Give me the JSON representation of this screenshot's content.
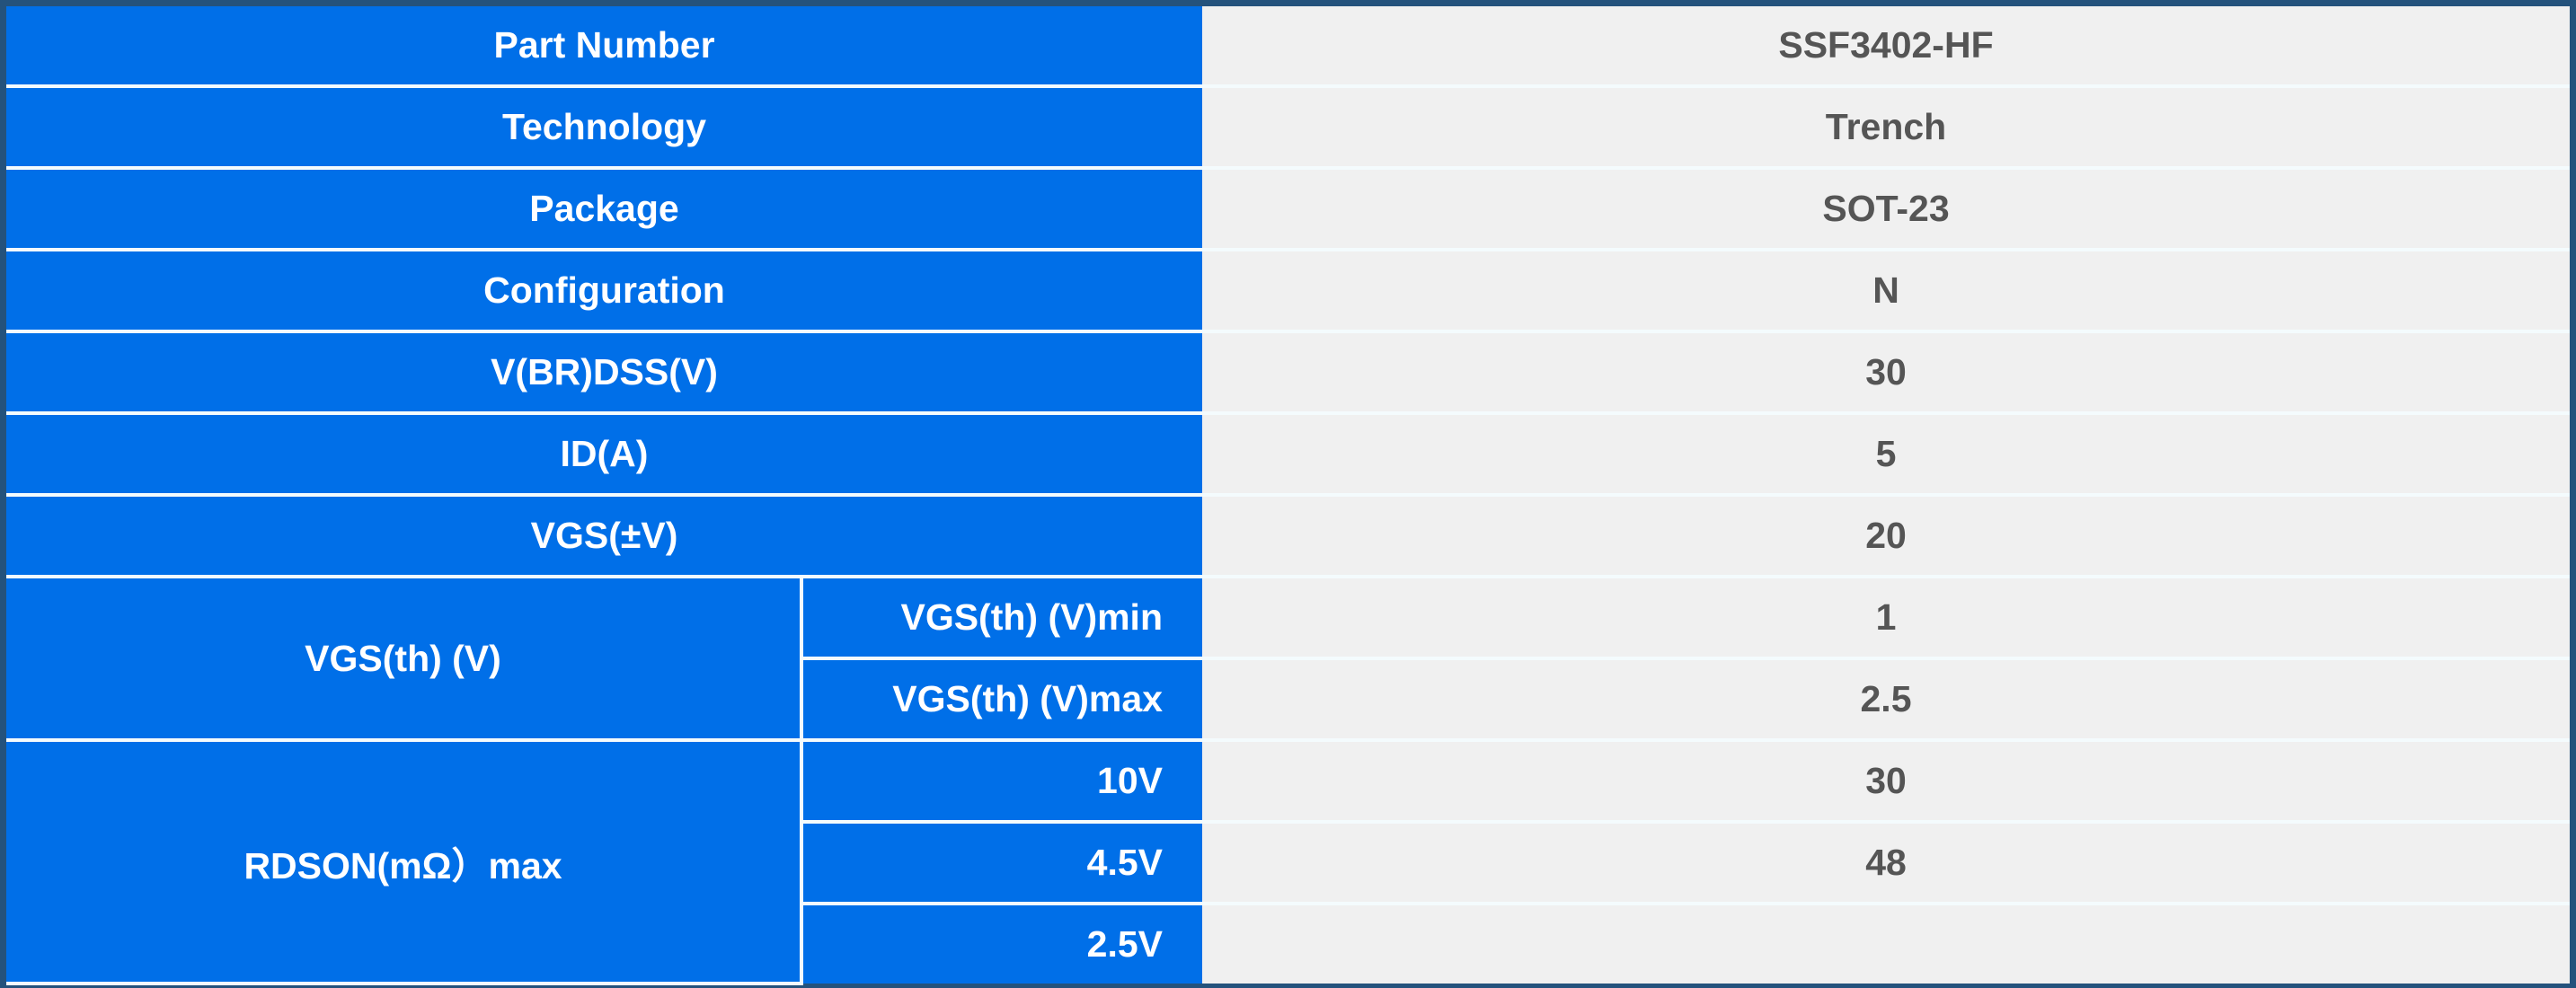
{
  "colors": {
    "label_bg": "#006fe8",
    "value_bg": "#f0f0f0",
    "frame": "#24527c",
    "value_text": "#555555"
  },
  "rows": [
    {
      "label": "Part Number",
      "value": "SSF3402-HF"
    },
    {
      "label": "Technology",
      "value": "Trench"
    },
    {
      "label": "Package",
      "value": "SOT-23"
    },
    {
      "label": "Configuration",
      "value": "N"
    },
    {
      "label": "V(BR)DSS(V)",
      "value": "30"
    },
    {
      "label": "ID(A)",
      "value": "5"
    },
    {
      "label": "VGS(±V)",
      "value": "20"
    }
  ],
  "vgs_th": {
    "label": "VGS(th) (V)",
    "sub": [
      {
        "label": "VGS(th) (V)min",
        "value": "1"
      },
      {
        "label": "VGS(th) (V)max",
        "value": "2.5"
      }
    ]
  },
  "rdson": {
    "label": "RDSON(mΩ）max",
    "sub": [
      {
        "label": "10V",
        "value": "30"
      },
      {
        "label": "4.5V",
        "value": "48"
      },
      {
        "label": "2.5V",
        "value": ""
      }
    ]
  }
}
